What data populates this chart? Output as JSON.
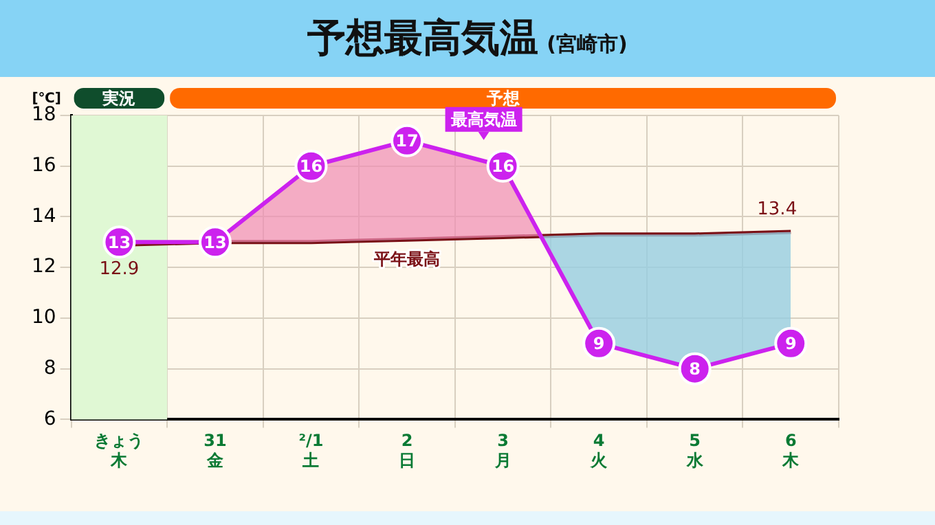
{
  "chart_data": {
    "type": "line",
    "title": "予想最高気温",
    "subtitle": "(宮崎市)",
    "ylabel": "[℃]",
    "categories": [
      "きょう木",
      "31金",
      "²/1土",
      "2日",
      "3月",
      "4火",
      "5水",
      "6木"
    ],
    "series": [
      {
        "name": "最高気温",
        "color": "#cc22ee",
        "values": [
          13,
          13,
          16,
          17,
          16,
          9,
          8,
          9
        ],
        "marker": "circle",
        "data_labels": true
      },
      {
        "name": "平年最高",
        "color": "#7a1016",
        "values": [
          12.9,
          13.0,
          13.0,
          13.1,
          13.2,
          13.3,
          13.3,
          13.4
        ],
        "marker": "none",
        "value_labels": [
          "12.9",
          null,
          null,
          null,
          null,
          null,
          null,
          "13.4"
        ]
      }
    ],
    "bands": [
      {
        "axis": "x",
        "from": "きょう木",
        "to": "きょう木",
        "label": "実況",
        "color": "#e0f8d4"
      }
    ],
    "annotations": [
      "予想"
    ],
    "legend": false,
    "ylim": [
      6,
      18
    ],
    "yticks": [
      6,
      8,
      10,
      12,
      14,
      16,
      18
    ],
    "grid": true,
    "line_style": "solid"
  }
}
